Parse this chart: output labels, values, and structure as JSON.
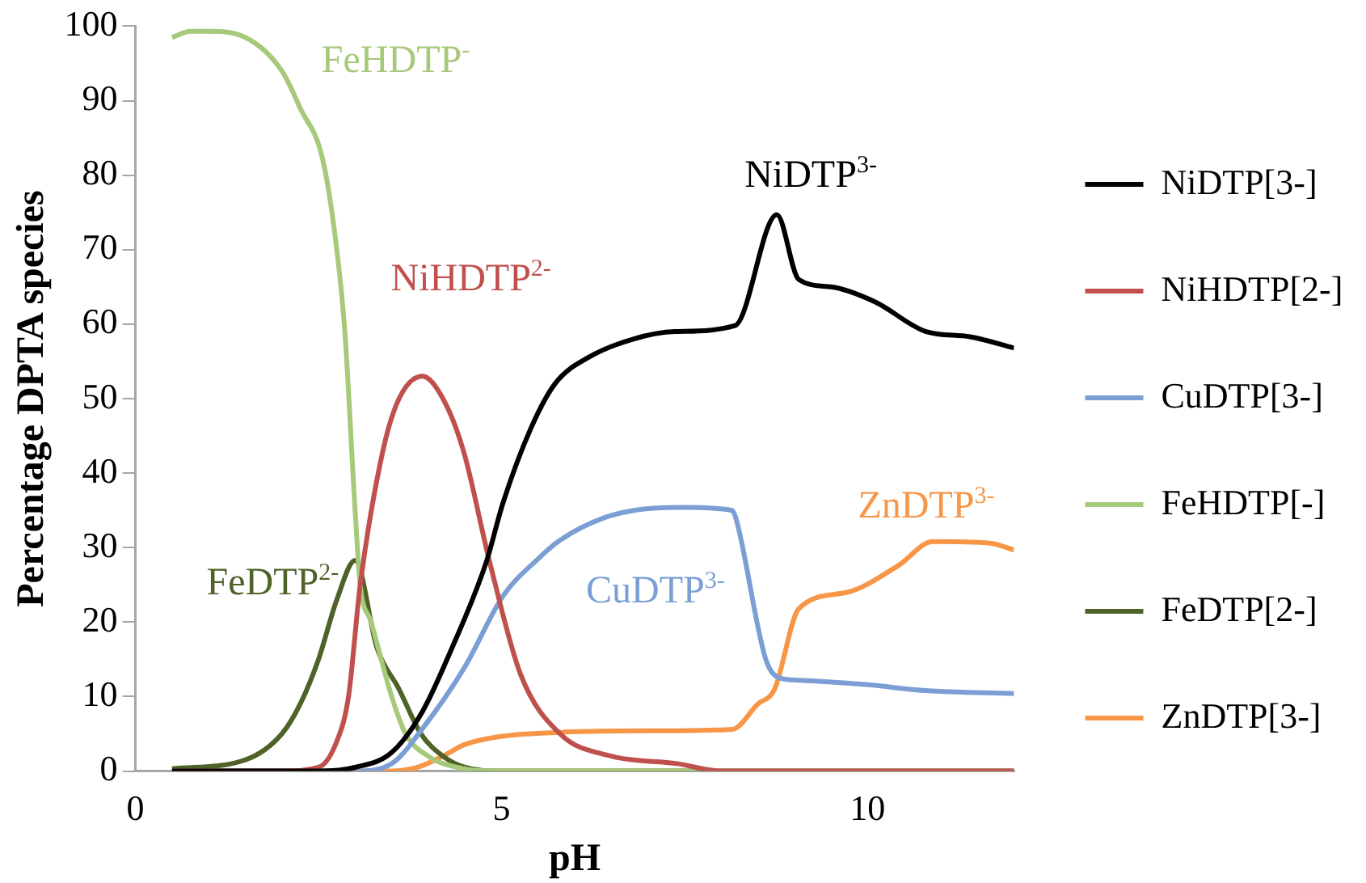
{
  "chart_data": {
    "type": "line",
    "xlabel": "pH",
    "ylabel": "Percentage DPTA species",
    "xlim": [
      0,
      12
    ],
    "xticks": [
      0,
      5,
      10
    ],
    "ylim": [
      0,
      100
    ],
    "yticks": [
      0,
      10,
      20,
      30,
      40,
      50,
      60,
      70,
      80,
      90,
      100
    ],
    "grid": false,
    "legend": "right",
    "marker": "none",
    "line_style": "solid",
    "series": [
      {
        "name": "NiDTP[3-]",
        "color": "#000000",
        "x": [
          0.5,
          2.5,
          3.0,
          3.5,
          3.92,
          4.3,
          4.79,
          5.02,
          5.4,
          5.73,
          6.2,
          6.8,
          7.37,
          8.19,
          8.76,
          9.06,
          9.5,
          10.1,
          10.8,
          11.4,
          12
        ],
        "values": [
          0,
          0,
          0.5,
          2.5,
          8,
          16,
          28,
          36,
          46,
          52,
          55.6,
          58,
          59,
          59.8,
          74.7,
          66,
          65,
          63,
          59,
          58.3,
          56.8
        ]
      },
      {
        "name": "NiHDTP[2-]",
        "color": "#c0504d",
        "x": [
          0.5,
          2,
          2.5,
          2.75,
          2.91,
          3.07,
          3.38,
          3.6,
          3.92,
          4.2,
          4.48,
          4.84,
          5.26,
          5.8,
          6.5,
          7.4,
          8,
          12
        ],
        "values": [
          0,
          0,
          0.5,
          4,
          10,
          25,
          43,
          50,
          53,
          50,
          43,
          28,
          13,
          5,
          2,
          1,
          0,
          0
        ]
      },
      {
        "name": "CuDTP[3-]",
        "color": "#7b9fd4",
        "x": [
          0.5,
          3.0,
          3.5,
          3.92,
          4.5,
          5.02,
          5.5,
          5.8,
          6.4,
          6.97,
          7.5,
          8.15,
          8.2,
          8.61,
          8.8,
          9.06,
          10,
          10.8,
          12
        ],
        "values": [
          0,
          0,
          1,
          5.7,
          14,
          23.5,
          28.5,
          31,
          34,
          35.2,
          35.4,
          35,
          34,
          15,
          12.5,
          12.2,
          11.6,
          10.8,
          10.4
        ]
      },
      {
        "name": "FeHDTP[-]",
        "color": "#a6c97a",
        "x": [
          0.5,
          0.75,
          1.0,
          1.5,
          2.0,
          2.25,
          2.56,
          2.75,
          2.86,
          3.0,
          3.07,
          3.22,
          3.5,
          3.69,
          4.0,
          4.5,
          5,
          12
        ],
        "values": [
          98.5,
          99.3,
          99.3,
          98.5,
          94,
          89,
          82,
          70,
          59,
          35,
          25,
          20,
          10,
          5,
          2,
          0.3,
          0,
          0
        ]
      },
      {
        "name": "FeDTP[2-]",
        "color": "#4f6228",
        "x": [
          0.5,
          1.5,
          2.0,
          2.25,
          2.5,
          2.75,
          3.0,
          3.3,
          3.6,
          3.9,
          4.2,
          4.5,
          5,
          12
        ],
        "values": [
          0.3,
          1.5,
          5,
          9,
          15,
          23,
          28.3,
          16.5,
          11,
          5,
          2,
          0.5,
          0,
          0
        ]
      },
      {
        "name": "ZnDTP[3-]",
        "color": "#f79646",
        "x": [
          0.5,
          3.5,
          3.85,
          4.2,
          4.48,
          4.95,
          5.8,
          7,
          8.15,
          8.5,
          8.73,
          9.06,
          9.72,
          10.42,
          10.89,
          11.67,
          12
        ],
        "values": [
          0,
          0,
          0.5,
          2,
          3.5,
          4.6,
          5.2,
          5.4,
          5.6,
          9,
          11,
          21.8,
          24,
          27.6,
          30.8,
          30.6,
          29.7
        ]
      }
    ],
    "annotations": [
      "NiDTP$^{3-}$",
      "NiHDTP$^{2-}$",
      "CuDTP$^{3-}$",
      "FeHDTP$^{-}$",
      "FeDTP$^{2-}$",
      "ZnDTP$^{3-}$"
    ]
  }
}
